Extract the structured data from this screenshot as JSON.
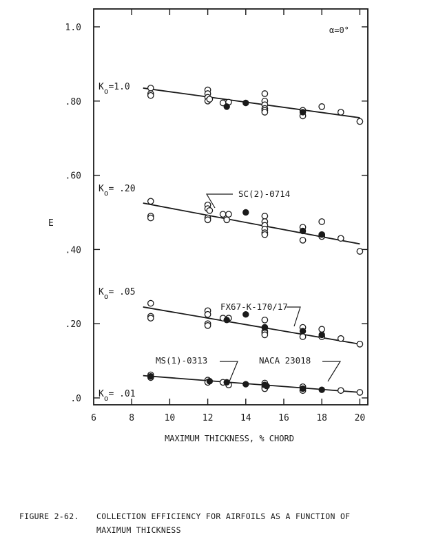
{
  "figure": {
    "number": "FIGURE 2-62.",
    "caption_line1": "COLLECTION EFFICIENCY FOR AIRFOILS AS A FUNCTION OF",
    "caption_line2": "MAXIMUM THICKNESS"
  },
  "chart_data": {
    "type": "scatter",
    "title": "",
    "xlabel": "MAXIMUM THICKNESS, % CHORD",
    "ylabel": "E",
    "xlim": [
      6,
      20.4
    ],
    "ylim": [
      0,
      1.0
    ],
    "x_ticks": [
      6,
      8,
      10,
      12,
      14,
      16,
      18,
      20
    ],
    "y_ticks": [
      {
        "value": 0.0,
        "label": ".0"
      },
      {
        "value": 0.2,
        "label": ".20"
      },
      {
        "value": 0.4,
        "label": ".40"
      },
      {
        "value": 0.6,
        "label": ".60"
      },
      {
        "value": 0.8,
        "label": ".80"
      },
      {
        "value": 1.0,
        "label": "1.0"
      }
    ],
    "grid": false,
    "annotation_alpha": "α=0°",
    "series": [
      {
        "name": "K0=1.0",
        "label": "K",
        "label_sub": "o",
        "label_val": "=1.0",
        "fit_line": [
          [
            8.6,
            0.835
          ],
          [
            20.0,
            0.755
          ]
        ],
        "open_points": [
          [
            9,
            0.835
          ],
          [
            9,
            0.82
          ],
          [
            9,
            0.815
          ],
          [
            12,
            0.83
          ],
          [
            12,
            0.82
          ],
          [
            12,
            0.81
          ],
          [
            12,
            0.8
          ],
          [
            12.1,
            0.805
          ],
          [
            12.8,
            0.795
          ],
          [
            13.1,
            0.797
          ],
          [
            15,
            0.82
          ],
          [
            15,
            0.8
          ],
          [
            15,
            0.79
          ],
          [
            15,
            0.78
          ],
          [
            15,
            0.775
          ],
          [
            15,
            0.77
          ],
          [
            17,
            0.775
          ],
          [
            17,
            0.76
          ],
          [
            18,
            0.785
          ],
          [
            19,
            0.77
          ],
          [
            20,
            0.745
          ]
        ],
        "filled_points": [
          [
            13,
            0.785
          ],
          [
            14,
            0.795
          ],
          [
            17,
            0.77
          ]
        ]
      },
      {
        "name": "K0=0.20",
        "label": "K",
        "label_sub": "o",
        "label_val": "= .20",
        "fit_line": [
          [
            8.6,
            0.525
          ],
          [
            20.0,
            0.415
          ]
        ],
        "open_points": [
          [
            9,
            0.53
          ],
          [
            9,
            0.49
          ],
          [
            9,
            0.485
          ],
          [
            12,
            0.52
          ],
          [
            12,
            0.51
          ],
          [
            12.1,
            0.505
          ],
          [
            12,
            0.485
          ],
          [
            12,
            0.48
          ],
          [
            12.8,
            0.495
          ],
          [
            13,
            0.48
          ],
          [
            13.1,
            0.495
          ],
          [
            15,
            0.49
          ],
          [
            15,
            0.475
          ],
          [
            15,
            0.465
          ],
          [
            15,
            0.455
          ],
          [
            15,
            0.445
          ],
          [
            15,
            0.44
          ],
          [
            17,
            0.46
          ],
          [
            17,
            0.425
          ],
          [
            18,
            0.475
          ],
          [
            18,
            0.44
          ],
          [
            18,
            0.435
          ],
          [
            19,
            0.43
          ],
          [
            20,
            0.395
          ]
        ],
        "filled_points": [
          [
            14,
            0.5
          ],
          [
            17,
            0.45
          ],
          [
            18,
            0.44
          ]
        ]
      },
      {
        "name": "K0=0.05",
        "label": "K",
        "label_sub": "o",
        "label_val": "= .05",
        "fit_line": [
          [
            8.6,
            0.245
          ],
          [
            20.0,
            0.145
          ]
        ],
        "open_points": [
          [
            9,
            0.255
          ],
          [
            9,
            0.22
          ],
          [
            9,
            0.215
          ],
          [
            12,
            0.235
          ],
          [
            12,
            0.225
          ],
          [
            12,
            0.2
          ],
          [
            12,
            0.195
          ],
          [
            12.8,
            0.215
          ],
          [
            13.1,
            0.215
          ],
          [
            15,
            0.21
          ],
          [
            15,
            0.19
          ],
          [
            15,
            0.18
          ],
          [
            15,
            0.175
          ],
          [
            15,
            0.17
          ],
          [
            17,
            0.19
          ],
          [
            17,
            0.165
          ],
          [
            18,
            0.185
          ],
          [
            18,
            0.165
          ],
          [
            19,
            0.16
          ],
          [
            20,
            0.145
          ]
        ],
        "filled_points": [
          [
            13,
            0.21
          ],
          [
            14,
            0.225
          ],
          [
            15,
            0.19
          ],
          [
            17,
            0.18
          ],
          [
            18,
            0.17
          ]
        ]
      },
      {
        "name": "K0=0.01",
        "label": "K",
        "label_sub": "o",
        "label_val": "= .01",
        "fit_line": [
          [
            8.6,
            0.06
          ],
          [
            20.0,
            0.015
          ]
        ],
        "open_points": [
          [
            9,
            0.062
          ],
          [
            9,
            0.055
          ],
          [
            12,
            0.048
          ],
          [
            12,
            0.042
          ],
          [
            12.8,
            0.042
          ],
          [
            13.1,
            0.035
          ],
          [
            15,
            0.04
          ],
          [
            15,
            0.03
          ],
          [
            15,
            0.025
          ],
          [
            17,
            0.03
          ],
          [
            17,
            0.02
          ],
          [
            19,
            0.02
          ],
          [
            20,
            0.015
          ]
        ],
        "filled_points": [
          [
            9,
            0.058
          ],
          [
            12.1,
            0.045
          ],
          [
            13,
            0.042
          ],
          [
            14,
            0.037
          ],
          [
            15,
            0.035
          ],
          [
            15.1,
            0.032
          ],
          [
            17,
            0.025
          ],
          [
            18,
            0.022
          ]
        ]
      }
    ],
    "callouts": [
      {
        "text": "SC(2)-0714",
        "target": [
          14,
          0.5
        ]
      },
      {
        "text": "FX67-K-170/17",
        "target": [
          17,
          0.18
        ]
      },
      {
        "text": "MS(1)-0313",
        "target": [
          13,
          0.042
        ]
      },
      {
        "text": "NACA 23018",
        "target": [
          18,
          0.022
        ]
      }
    ]
  }
}
